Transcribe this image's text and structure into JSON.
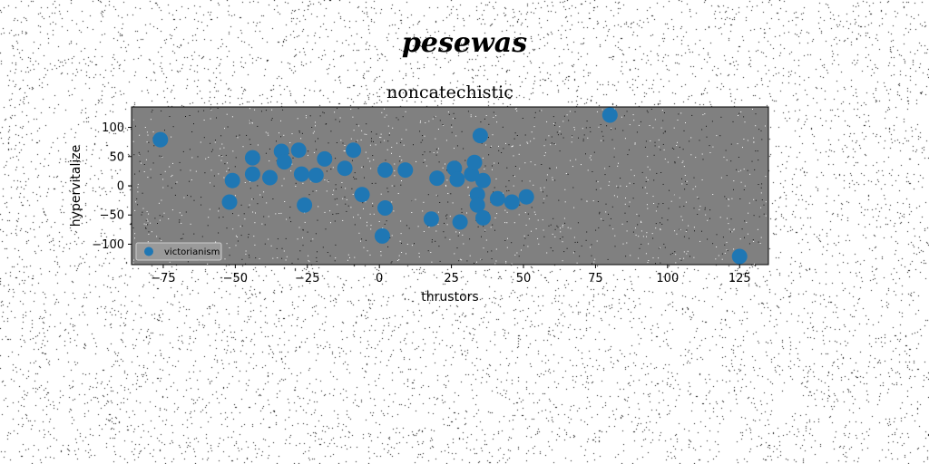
{
  "figure": {
    "suptitle": "pesewas"
  },
  "chart_data": {
    "type": "scatter",
    "title": "noncatechistic",
    "xlabel": "thrustors",
    "ylabel": "hypervitalize",
    "xlim": [
      -86,
      135
    ],
    "ylim": [
      -135,
      135
    ],
    "xticks": [
      -75,
      -50,
      -25,
      0,
      25,
      50,
      75,
      100,
      125
    ],
    "yticks": [
      100,
      50,
      0,
      -50,
      -100
    ],
    "grid": false,
    "legend_position": "lower-left",
    "colors": {
      "marker": "#1f77b4",
      "plot_background": "#808080"
    },
    "series": [
      {
        "name": "victorianism",
        "points": [
          [
            -76,
            79
          ],
          [
            -52,
            -28
          ],
          [
            -51,
            9
          ],
          [
            -44,
            48
          ],
          [
            -44,
            20
          ],
          [
            -38,
            14
          ],
          [
            -34,
            59
          ],
          [
            -33,
            41
          ],
          [
            -28,
            61
          ],
          [
            -27,
            20
          ],
          [
            -26,
            -33
          ],
          [
            -22,
            18
          ],
          [
            -19,
            46
          ],
          [
            -12,
            30
          ],
          [
            -9,
            61
          ],
          [
            -6,
            -15
          ],
          [
            1,
            -86
          ],
          [
            2,
            -38
          ],
          [
            2,
            27
          ],
          [
            9,
            27
          ],
          [
            18,
            -57
          ],
          [
            20,
            13
          ],
          [
            26,
            30
          ],
          [
            27,
            11
          ],
          [
            28,
            -62
          ],
          [
            32,
            20
          ],
          [
            33,
            40
          ],
          [
            34,
            -15
          ],
          [
            34,
            -33
          ],
          [
            35,
            86
          ],
          [
            36,
            -55
          ],
          [
            36,
            9
          ],
          [
            41,
            -22
          ],
          [
            46,
            -28
          ],
          [
            51,
            -19
          ],
          [
            80,
            121
          ],
          [
            125,
            -121
          ]
        ]
      }
    ]
  }
}
